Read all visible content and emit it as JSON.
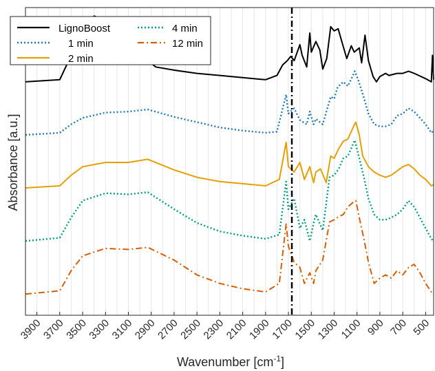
{
  "chart_data": {
    "type": "line",
    "xlabel": "Wavenumber [cm",
    "xlabel_sup": "-1",
    "xlabel_close": "]",
    "ylabel": "Absorbance [a.u.]",
    "x_reversed": true,
    "xlim": [
      4000,
      430
    ],
    "ylim": [
      -0.7,
      2.2
    ],
    "grid": "vertical",
    "x_ticks": [
      3900,
      3700,
      3500,
      3300,
      3100,
      2900,
      2700,
      2500,
      2300,
      2100,
      1900,
      1700,
      1500,
      1300,
      1100,
      900,
      700,
      500
    ],
    "vline": 1670,
    "legend": {
      "placement": "top-left",
      "columns": 2
    },
    "series": [
      {
        "name": "LignoBoost",
        "color": "#000000",
        "dash": "solid",
        "offset": 1.5,
        "points": [
          [
            4000,
            0.0
          ],
          [
            3700,
            0.02
          ],
          [
            3600,
            0.25
          ],
          [
            3500,
            0.5
          ],
          [
            3400,
            0.62
          ],
          [
            3300,
            0.58
          ],
          [
            3200,
            0.46
          ],
          [
            3100,
            0.28
          ],
          [
            3000,
            0.18
          ],
          [
            2930,
            0.2
          ],
          [
            2860,
            0.14
          ],
          [
            2700,
            0.11
          ],
          [
            2500,
            0.08
          ],
          [
            2300,
            0.06
          ],
          [
            2100,
            0.04
          ],
          [
            1900,
            0.02
          ],
          [
            1800,
            0.06
          ],
          [
            1750,
            0.16
          ],
          [
            1710,
            0.2
          ],
          [
            1680,
            0.24
          ],
          [
            1650,
            0.2
          ],
          [
            1600,
            0.35
          ],
          [
            1580,
            0.25
          ],
          [
            1540,
            0.14
          ],
          [
            1513,
            0.46
          ],
          [
            1500,
            0.28
          ],
          [
            1460,
            0.38
          ],
          [
            1425,
            0.3
          ],
          [
            1400,
            0.12
          ],
          [
            1365,
            0.22
          ],
          [
            1330,
            0.52
          ],
          [
            1300,
            0.48
          ],
          [
            1265,
            0.5
          ],
          [
            1220,
            0.33
          ],
          [
            1190,
            0.22
          ],
          [
            1150,
            0.34
          ],
          [
            1125,
            0.28
          ],
          [
            1080,
            0.32
          ],
          [
            1060,
            0.18
          ],
          [
            1030,
            0.44
          ],
          [
            1000,
            0.2
          ],
          [
            960,
            0.05
          ],
          [
            930,
            0.0
          ],
          [
            900,
            0.05
          ],
          [
            850,
            0.08
          ],
          [
            820,
            0.06
          ],
          [
            750,
            0.08
          ],
          [
            700,
            0.08
          ],
          [
            650,
            0.1
          ],
          [
            600,
            0.08
          ],
          [
            560,
            0.06
          ],
          [
            500,
            0.03
          ],
          [
            450,
            0.0
          ],
          [
            440,
            0.25
          ],
          [
            430,
            0.02
          ]
        ]
      },
      {
        "name": "1 min",
        "color": "#1f77b4",
        "dash": "dotted",
        "offset": 1.0,
        "points": [
          [
            4000,
            0.0
          ],
          [
            3700,
            0.02
          ],
          [
            3600,
            0.1
          ],
          [
            3500,
            0.16
          ],
          [
            3300,
            0.21
          ],
          [
            3100,
            0.22
          ],
          [
            2930,
            0.24
          ],
          [
            2700,
            0.17
          ],
          [
            2500,
            0.12
          ],
          [
            2300,
            0.07
          ],
          [
            2100,
            0.04
          ],
          [
            1900,
            0.02
          ],
          [
            1800,
            0.03
          ],
          [
            1720,
            0.38
          ],
          [
            1700,
            0.2
          ],
          [
            1650,
            0.25
          ],
          [
            1600,
            0.14
          ],
          [
            1540,
            0.1
          ],
          [
            1513,
            0.22
          ],
          [
            1480,
            0.1
          ],
          [
            1460,
            0.15
          ],
          [
            1400,
            0.1
          ],
          [
            1330,
            0.36
          ],
          [
            1300,
            0.34
          ],
          [
            1270,
            0.45
          ],
          [
            1220,
            0.5
          ],
          [
            1180,
            0.46
          ],
          [
            1140,
            0.55
          ],
          [
            1120,
            0.6
          ],
          [
            1090,
            0.52
          ],
          [
            1040,
            0.35
          ],
          [
            1000,
            0.2
          ],
          [
            950,
            0.1
          ],
          [
            900,
            0.08
          ],
          [
            850,
            0.08
          ],
          [
            800,
            0.1
          ],
          [
            750,
            0.18
          ],
          [
            700,
            0.2
          ],
          [
            650,
            0.25
          ],
          [
            600,
            0.22
          ],
          [
            550,
            0.16
          ],
          [
            500,
            0.1
          ],
          [
            450,
            0.02
          ],
          [
            430,
            0.04
          ]
        ]
      },
      {
        "name": "2 min",
        "color": "#e69f00",
        "dash": "solid",
        "offset": 0.5,
        "points": [
          [
            4000,
            0.0
          ],
          [
            3700,
            0.02
          ],
          [
            3600,
            0.12
          ],
          [
            3500,
            0.2
          ],
          [
            3300,
            0.24
          ],
          [
            3100,
            0.24
          ],
          [
            2930,
            0.27
          ],
          [
            2700,
            0.17
          ],
          [
            2500,
            0.1
          ],
          [
            2300,
            0.06
          ],
          [
            2100,
            0.04
          ],
          [
            1900,
            0.02
          ],
          [
            1780,
            0.08
          ],
          [
            1720,
            0.43
          ],
          [
            1700,
            0.2
          ],
          [
            1650,
            0.15
          ],
          [
            1600,
            0.24
          ],
          [
            1560,
            0.08
          ],
          [
            1513,
            0.2
          ],
          [
            1480,
            0.05
          ],
          [
            1460,
            0.15
          ],
          [
            1420,
            0.18
          ],
          [
            1370,
            0.05
          ],
          [
            1330,
            0.3
          ],
          [
            1300,
            0.28
          ],
          [
            1260,
            0.37
          ],
          [
            1220,
            0.44
          ],
          [
            1180,
            0.46
          ],
          [
            1130,
            0.58
          ],
          [
            1110,
            0.62
          ],
          [
            1080,
            0.5
          ],
          [
            1050,
            0.3
          ],
          [
            1000,
            0.2
          ],
          [
            950,
            0.15
          ],
          [
            900,
            0.12
          ],
          [
            850,
            0.1
          ],
          [
            800,
            0.12
          ],
          [
            750,
            0.16
          ],
          [
            700,
            0.2
          ],
          [
            650,
            0.22
          ],
          [
            600,
            0.18
          ],
          [
            550,
            0.12
          ],
          [
            500,
            0.08
          ],
          [
            450,
            0.02
          ],
          [
            430,
            0.03
          ]
        ]
      },
      {
        "name": "4 min",
        "color": "#009e73",
        "dash": "dotted",
        "offset": 0.0,
        "points": [
          [
            4000,
            0.0
          ],
          [
            3700,
            0.03
          ],
          [
            3600,
            0.22
          ],
          [
            3500,
            0.38
          ],
          [
            3300,
            0.45
          ],
          [
            3100,
            0.44
          ],
          [
            2930,
            0.46
          ],
          [
            2700,
            0.3
          ],
          [
            2500,
            0.17
          ],
          [
            2300,
            0.09
          ],
          [
            2100,
            0.05
          ],
          [
            1900,
            0.02
          ],
          [
            1780,
            0.06
          ],
          [
            1720,
            0.56
          ],
          [
            1700,
            0.3
          ],
          [
            1650,
            0.4
          ],
          [
            1600,
            0.12
          ],
          [
            1560,
            0.2
          ],
          [
            1513,
            0.0
          ],
          [
            1480,
            0.17
          ],
          [
            1460,
            0.25
          ],
          [
            1400,
            0.1
          ],
          [
            1340,
            0.6
          ],
          [
            1300,
            0.62
          ],
          [
            1260,
            0.68
          ],
          [
            1220,
            0.78
          ],
          [
            1180,
            0.8
          ],
          [
            1140,
            0.9
          ],
          [
            1120,
            0.95
          ],
          [
            1080,
            0.78
          ],
          [
            1040,
            0.6
          ],
          [
            1000,
            0.4
          ],
          [
            950,
            0.25
          ],
          [
            900,
            0.2
          ],
          [
            850,
            0.2
          ],
          [
            800,
            0.22
          ],
          [
            750,
            0.25
          ],
          [
            700,
            0.3
          ],
          [
            650,
            0.38
          ],
          [
            600,
            0.32
          ],
          [
            550,
            0.22
          ],
          [
            500,
            0.12
          ],
          [
            450,
            0.02
          ],
          [
            430,
            0.0
          ]
        ]
      },
      {
        "name": "12 min",
        "color": "#d55e00",
        "dash": "dashdot",
        "offset": -0.5,
        "points": [
          [
            4000,
            0.0
          ],
          [
            3700,
            0.03
          ],
          [
            3600,
            0.22
          ],
          [
            3500,
            0.36
          ],
          [
            3300,
            0.43
          ],
          [
            3100,
            0.42
          ],
          [
            2930,
            0.44
          ],
          [
            2700,
            0.32
          ],
          [
            2500,
            0.18
          ],
          [
            2300,
            0.1
          ],
          [
            2100,
            0.05
          ],
          [
            1900,
            0.02
          ],
          [
            1780,
            0.1
          ],
          [
            1720,
            0.66
          ],
          [
            1700,
            0.45
          ],
          [
            1650,
            0.3
          ],
          [
            1600,
            0.25
          ],
          [
            1560,
            0.1
          ],
          [
            1513,
            0.2
          ],
          [
            1480,
            0.1
          ],
          [
            1460,
            0.22
          ],
          [
            1400,
            0.32
          ],
          [
            1340,
            0.68
          ],
          [
            1300,
            0.7
          ],
          [
            1260,
            0.73
          ],
          [
            1220,
            0.75
          ],
          [
            1180,
            0.82
          ],
          [
            1140,
            0.86
          ],
          [
            1110,
            0.88
          ],
          [
            1080,
            0.72
          ],
          [
            1040,
            0.52
          ],
          [
            1000,
            0.3
          ],
          [
            950,
            0.1
          ],
          [
            900,
            0.15
          ],
          [
            850,
            0.18
          ],
          [
            800,
            0.15
          ],
          [
            750,
            0.22
          ],
          [
            700,
            0.18
          ],
          [
            650,
            0.25
          ],
          [
            600,
            0.28
          ],
          [
            550,
            0.2
          ],
          [
            500,
            0.1
          ],
          [
            450,
            0.02
          ],
          [
            430,
            0.0
          ]
        ]
      }
    ]
  }
}
